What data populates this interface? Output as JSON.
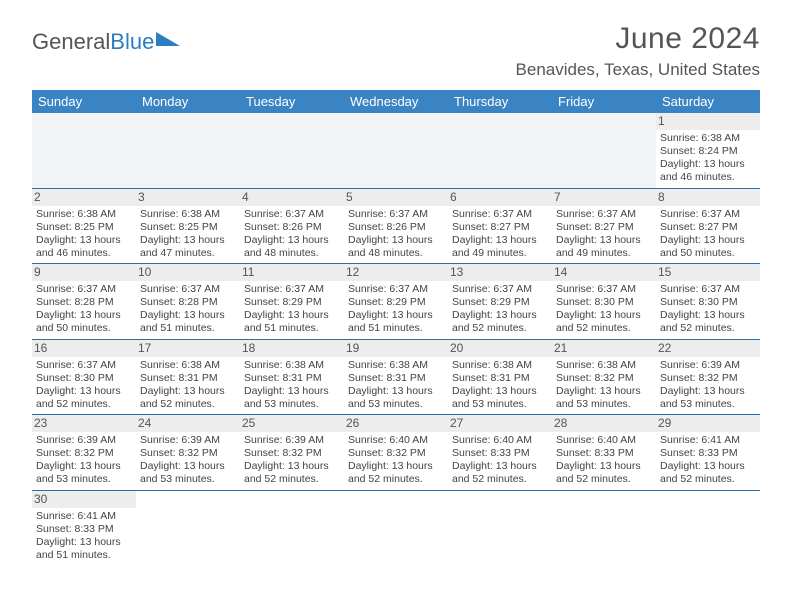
{
  "logo": {
    "text1": "General",
    "text2": "Blue",
    "triangle_color": "#2d7cc0"
  },
  "title": "June 2024",
  "location": "Benavides, Texas, United States",
  "header_bg": "#3b84c4",
  "daynum_bg": "#ededed",
  "border_color": "#2d6ea8",
  "days_of_week": [
    "Sunday",
    "Monday",
    "Tuesday",
    "Wednesday",
    "Thursday",
    "Friday",
    "Saturday"
  ],
  "leading_blanks": 6,
  "days": [
    {
      "n": 1,
      "sunrise": "6:38 AM",
      "sunset": "8:24 PM",
      "dl": "13 hours and 46 minutes."
    },
    {
      "n": 2,
      "sunrise": "6:38 AM",
      "sunset": "8:25 PM",
      "dl": "13 hours and 46 minutes."
    },
    {
      "n": 3,
      "sunrise": "6:38 AM",
      "sunset": "8:25 PM",
      "dl": "13 hours and 47 minutes."
    },
    {
      "n": 4,
      "sunrise": "6:37 AM",
      "sunset": "8:26 PM",
      "dl": "13 hours and 48 minutes."
    },
    {
      "n": 5,
      "sunrise": "6:37 AM",
      "sunset": "8:26 PM",
      "dl": "13 hours and 48 minutes."
    },
    {
      "n": 6,
      "sunrise": "6:37 AM",
      "sunset": "8:27 PM",
      "dl": "13 hours and 49 minutes."
    },
    {
      "n": 7,
      "sunrise": "6:37 AM",
      "sunset": "8:27 PM",
      "dl": "13 hours and 49 minutes."
    },
    {
      "n": 8,
      "sunrise": "6:37 AM",
      "sunset": "8:27 PM",
      "dl": "13 hours and 50 minutes."
    },
    {
      "n": 9,
      "sunrise": "6:37 AM",
      "sunset": "8:28 PM",
      "dl": "13 hours and 50 minutes."
    },
    {
      "n": 10,
      "sunrise": "6:37 AM",
      "sunset": "8:28 PM",
      "dl": "13 hours and 51 minutes."
    },
    {
      "n": 11,
      "sunrise": "6:37 AM",
      "sunset": "8:29 PM",
      "dl": "13 hours and 51 minutes."
    },
    {
      "n": 12,
      "sunrise": "6:37 AM",
      "sunset": "8:29 PM",
      "dl": "13 hours and 51 minutes."
    },
    {
      "n": 13,
      "sunrise": "6:37 AM",
      "sunset": "8:29 PM",
      "dl": "13 hours and 52 minutes."
    },
    {
      "n": 14,
      "sunrise": "6:37 AM",
      "sunset": "8:30 PM",
      "dl": "13 hours and 52 minutes."
    },
    {
      "n": 15,
      "sunrise": "6:37 AM",
      "sunset": "8:30 PM",
      "dl": "13 hours and 52 minutes."
    },
    {
      "n": 16,
      "sunrise": "6:37 AM",
      "sunset": "8:30 PM",
      "dl": "13 hours and 52 minutes."
    },
    {
      "n": 17,
      "sunrise": "6:38 AM",
      "sunset": "8:31 PM",
      "dl": "13 hours and 52 minutes."
    },
    {
      "n": 18,
      "sunrise": "6:38 AM",
      "sunset": "8:31 PM",
      "dl": "13 hours and 53 minutes."
    },
    {
      "n": 19,
      "sunrise": "6:38 AM",
      "sunset": "8:31 PM",
      "dl": "13 hours and 53 minutes."
    },
    {
      "n": 20,
      "sunrise": "6:38 AM",
      "sunset": "8:31 PM",
      "dl": "13 hours and 53 minutes."
    },
    {
      "n": 21,
      "sunrise": "6:38 AM",
      "sunset": "8:32 PM",
      "dl": "13 hours and 53 minutes."
    },
    {
      "n": 22,
      "sunrise": "6:39 AM",
      "sunset": "8:32 PM",
      "dl": "13 hours and 53 minutes."
    },
    {
      "n": 23,
      "sunrise": "6:39 AM",
      "sunset": "8:32 PM",
      "dl": "13 hours and 53 minutes."
    },
    {
      "n": 24,
      "sunrise": "6:39 AM",
      "sunset": "8:32 PM",
      "dl": "13 hours and 53 minutes."
    },
    {
      "n": 25,
      "sunrise": "6:39 AM",
      "sunset": "8:32 PM",
      "dl": "13 hours and 52 minutes."
    },
    {
      "n": 26,
      "sunrise": "6:40 AM",
      "sunset": "8:32 PM",
      "dl": "13 hours and 52 minutes."
    },
    {
      "n": 27,
      "sunrise": "6:40 AM",
      "sunset": "8:33 PM",
      "dl": "13 hours and 52 minutes."
    },
    {
      "n": 28,
      "sunrise": "6:40 AM",
      "sunset": "8:33 PM",
      "dl": "13 hours and 52 minutes."
    },
    {
      "n": 29,
      "sunrise": "6:41 AM",
      "sunset": "8:33 PM",
      "dl": "13 hours and 52 minutes."
    },
    {
      "n": 30,
      "sunrise": "6:41 AM",
      "sunset": "8:33 PM",
      "dl": "13 hours and 51 minutes."
    }
  ],
  "labels": {
    "sunrise": "Sunrise:",
    "sunset": "Sunset:",
    "daylight": "Daylight:"
  }
}
